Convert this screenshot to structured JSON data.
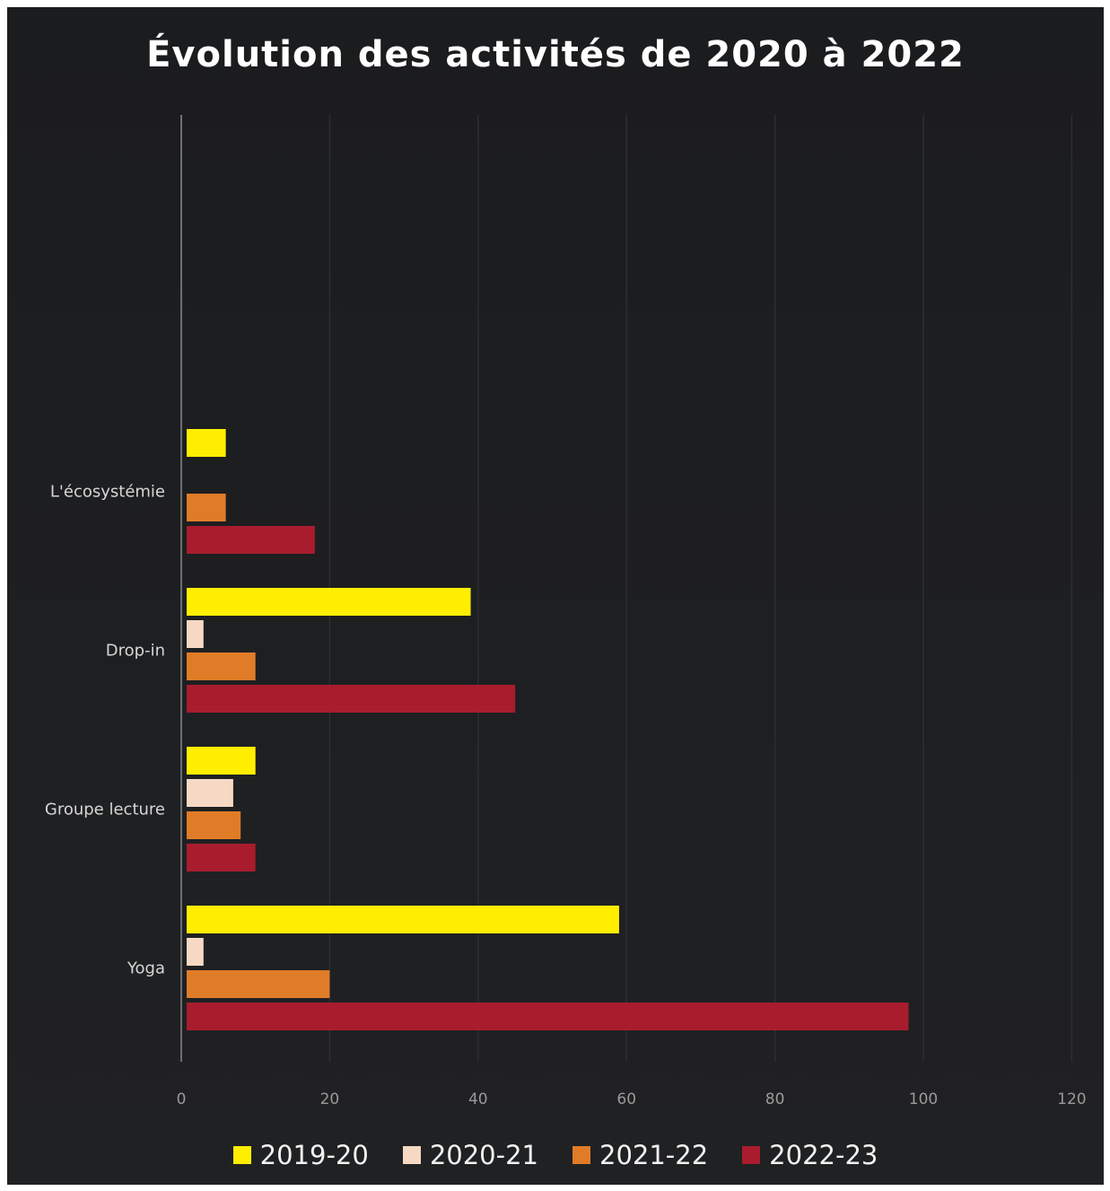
{
  "chart_data": {
    "type": "bar",
    "orientation": "horizontal",
    "title": "Évolution des activités de 2020 à 2022",
    "categories": [
      "Yoga",
      "Groupe lecture",
      "Drop-in",
      "L'écosystémie"
    ],
    "series": [
      {
        "name": "2019-20",
        "color": "#ffee00",
        "values": [
          59,
          10,
          39,
          6
        ]
      },
      {
        "name": "2020-21",
        "color": "#f5d9c4",
        "values": [
          3,
          7,
          3,
          0
        ]
      },
      {
        "name": "2021-22",
        "color": "#e07c28",
        "values": [
          20,
          8,
          10,
          6
        ]
      },
      {
        "name": "2022-23",
        "color": "#a81c2e",
        "values": [
          98,
          10,
          45,
          18
        ]
      }
    ],
    "xlim": [
      0,
      120
    ],
    "x_ticks": [
      "0",
      "20",
      "40",
      "60",
      "80",
      "100",
      "120"
    ],
    "grid": true,
    "legend_position": "bottom"
  }
}
